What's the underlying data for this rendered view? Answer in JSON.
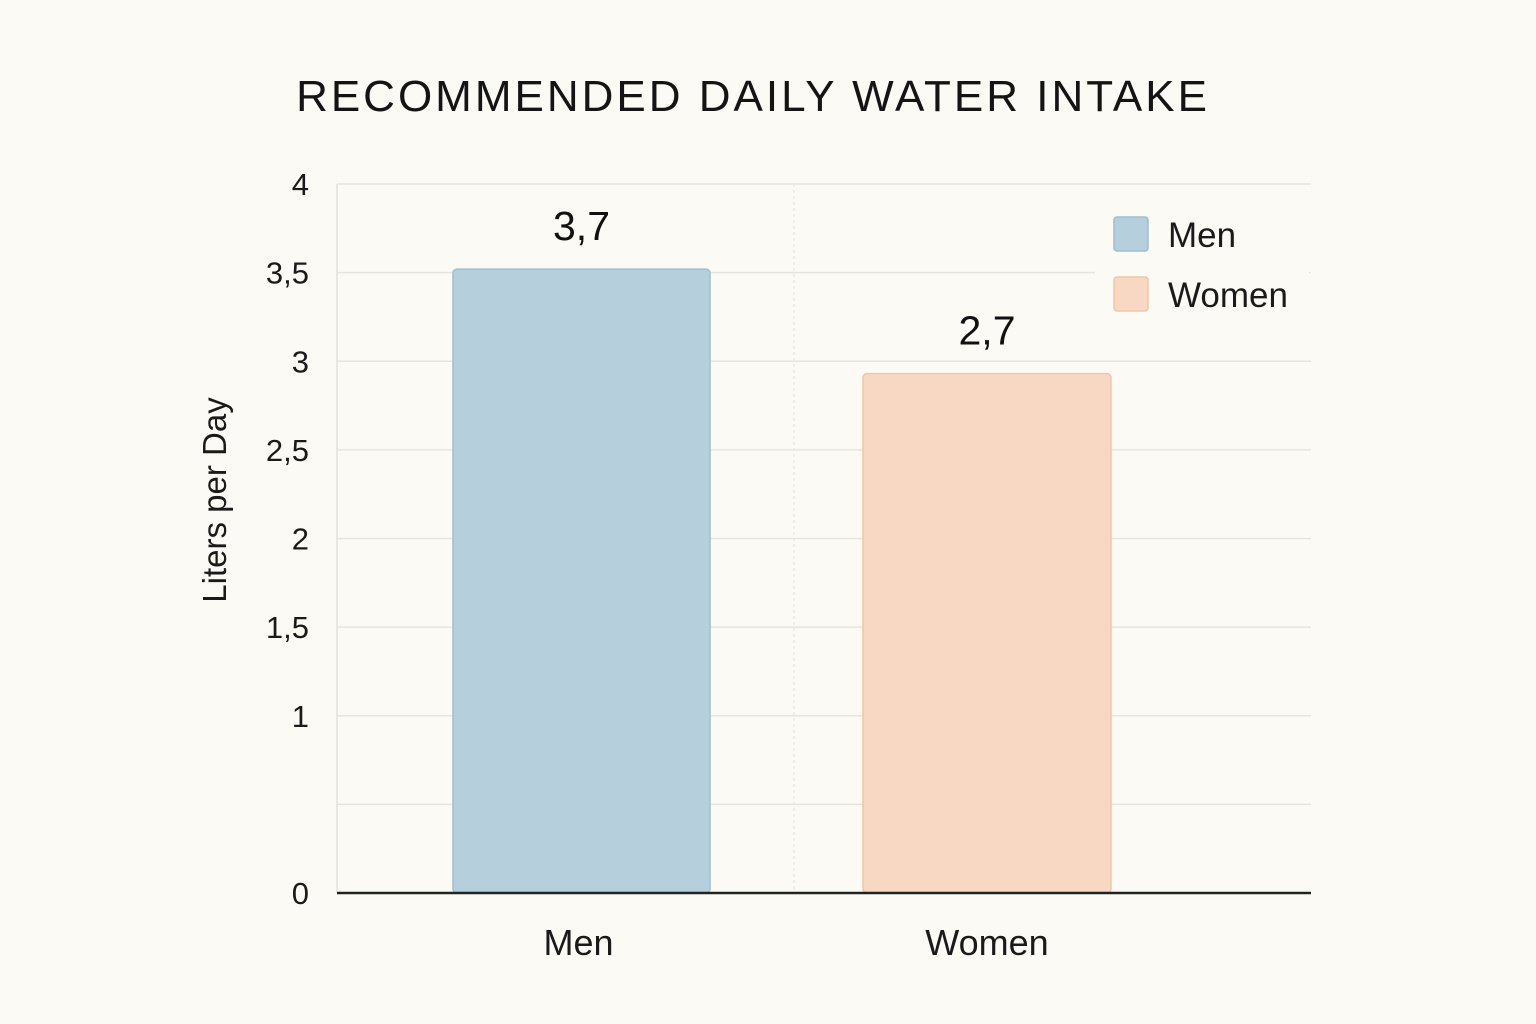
{
  "chart_data": {
    "type": "bar",
    "title": "RECOMMENDED DAILY WATER INTAKE",
    "xlabel": "",
    "ylabel": "Liters per Day",
    "categories": [
      "Men",
      "Women"
    ],
    "series": [
      {
        "name": "Men",
        "values": [
          3.7,
          null
        ],
        "color": "#b5d0dc",
        "stroke": "#9cbfd0"
      },
      {
        "name": "Women",
        "values": [
          null,
          2.7
        ],
        "color": "#f8d8c3",
        "stroke": "#efc6aa"
      }
    ],
    "data_labels": [
      "3,7",
      "2,7"
    ],
    "ylim": [
      0,
      4
    ],
    "yticks": [
      0,
      0.5,
      1,
      1.5,
      2,
      2.5,
      3,
      3.5,
      4
    ],
    "ytick_labels": [
      "0",
      "",
      "1",
      "1,5",
      "2",
      "2,5",
      "3",
      "3,5",
      "4"
    ],
    "grid": true,
    "legend_position": "top-right"
  }
}
